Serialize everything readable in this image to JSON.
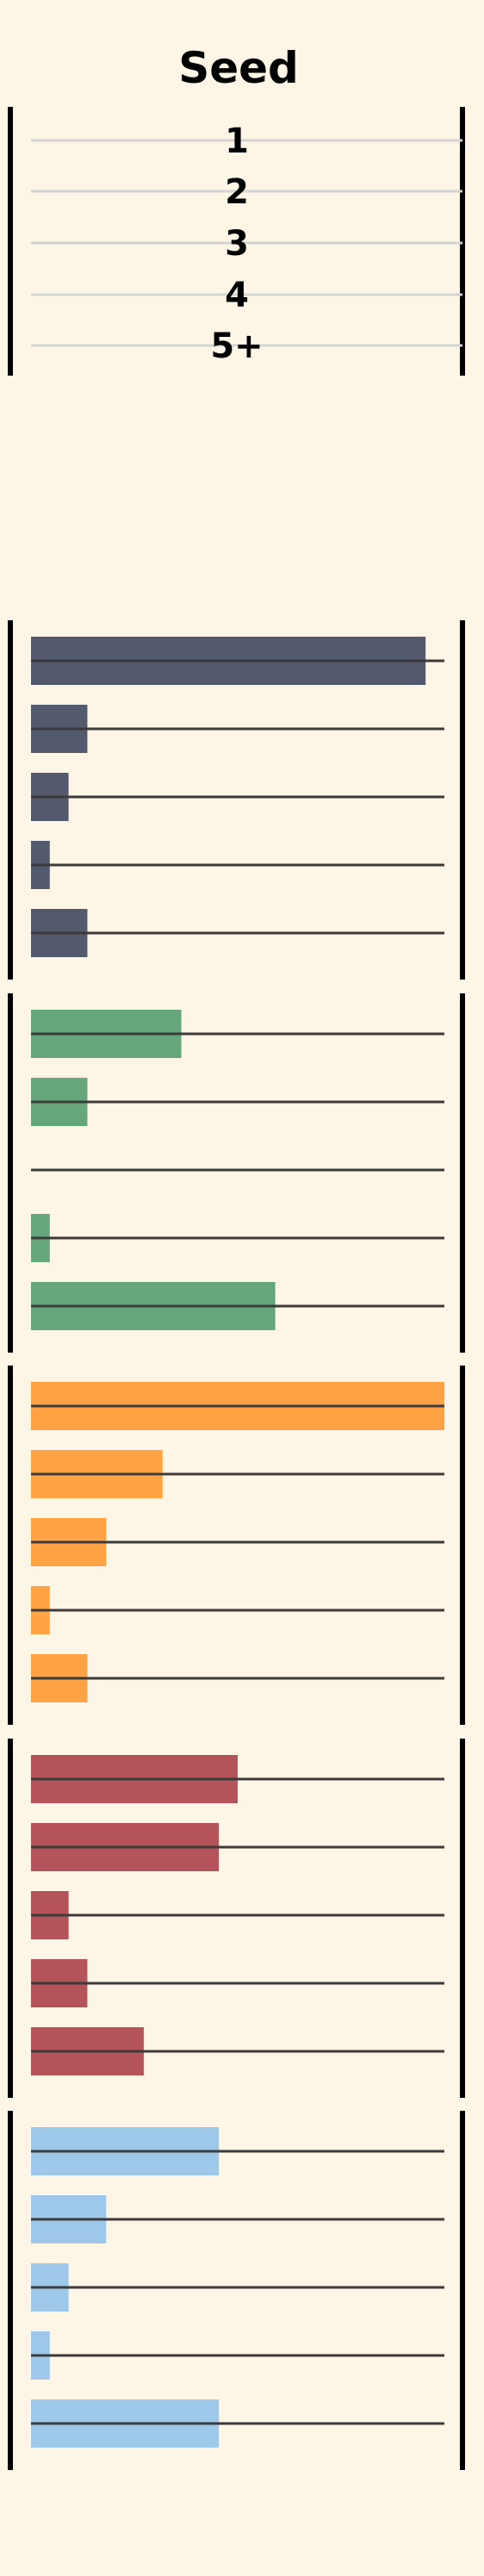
{
  "chart_data": {
    "type": "bar",
    "title": "Seed",
    "categories": [
      "1",
      "2",
      "3",
      "4",
      "5+"
    ],
    "xlim": [
      0,
      22
    ],
    "grid": false,
    "legend": "none",
    "series": [
      {
        "color": "#545a6e",
        "values": [
          21,
          3,
          2,
          1,
          3
        ]
      },
      {
        "color": "#65a77a",
        "values": [
          8,
          3,
          0,
          1,
          13
        ]
      },
      {
        "color": "#ffa345",
        "values": [
          22,
          7,
          4,
          1,
          3
        ]
      },
      {
        "color": "#b5535a",
        "values": [
          11,
          10,
          2,
          3,
          6
        ]
      },
      {
        "color": "#9dc8e9",
        "values": [
          10,
          4,
          2,
          1,
          10
        ]
      }
    ]
  }
}
